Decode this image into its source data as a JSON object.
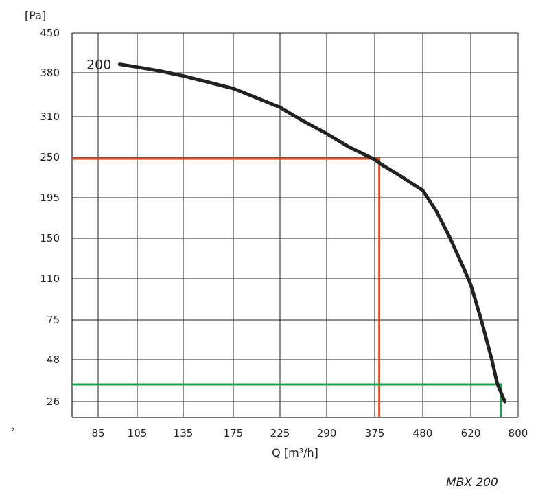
{
  "chart_data": {
    "type": "line",
    "ylabel": "[Pa]",
    "xlabel": "Q [m³/h]",
    "x_ticks": [
      "85",
      "105",
      "135",
      "175",
      "225",
      "290",
      "375",
      "480",
      "620",
      "800"
    ],
    "y_ticks": [
      "450",
      "380",
      "310",
      "250",
      "195",
      "150",
      "110",
      "75",
      "48",
      "26"
    ],
    "series": [
      {
        "name": "200",
        "color": "#222222",
        "x": [
          96,
          105,
          120,
          135,
          155,
          175,
          200,
          225,
          255,
          290,
          330,
          375,
          390,
          430,
          480,
          520,
          560,
          600,
          620,
          660,
          700,
          720,
          740,
          750
        ],
        "y": [
          395,
          390,
          383,
          375,
          365,
          355,
          340,
          325,
          305,
          285,
          265,
          247,
          240,
          225,
          205,
          180,
          150,
          120,
          105,
          75,
          48,
          36,
          29,
          26
        ]
      }
    ],
    "operating_points": [
      {
        "color": "#e2501e",
        "x": 385,
        "y": 248
      },
      {
        "color": "#1aa252",
        "x": 735,
        "y": 35
      }
    ],
    "grid": true
  },
  "model_label": "MBX 200",
  "stray_mark": "›"
}
